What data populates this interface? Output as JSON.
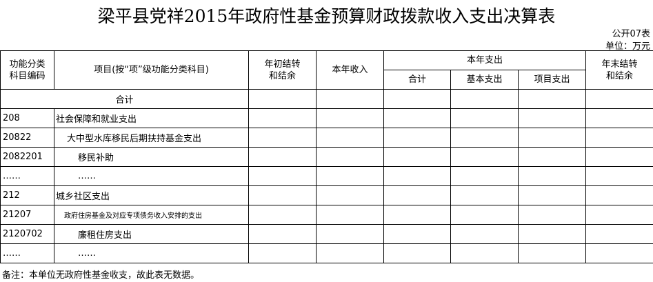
{
  "title": "梁平县党祥2015年政府性基金预算财政拨款收入支出决算表",
  "form_no": "公开07表",
  "unit": "单位：万元",
  "headers": {
    "code": "功能分类科目编码",
    "item": "项目(按“项”级功能分类科目)",
    "begin_balance": "年初结转和结余",
    "income": "本年收入",
    "expense": "本年支出",
    "expense_total": "合计",
    "expense_basic": "基本支出",
    "expense_project": "项目支出",
    "end_balance": "年末结转和结余"
  },
  "total_label": "合计",
  "rows": [
    {
      "code": "208",
      "name": "社会保障和就业支出"
    },
    {
      "code": "20822",
      "name": "大中型水库移民后期扶持基金支出"
    },
    {
      "code": "2082201",
      "name": "移民补助"
    },
    {
      "code": "……",
      "name": "……"
    },
    {
      "code": "212",
      "name": "城乡社区支出"
    },
    {
      "code": "21207",
      "name": "政府住房基金及对应专项债务收入安排的支出"
    },
    {
      "code": "2120702",
      "name": "廉租住房支出"
    },
    {
      "code": "……",
      "name": "……"
    }
  ],
  "note": "备注：本单位无政府性基金收支，故此表无数据。"
}
